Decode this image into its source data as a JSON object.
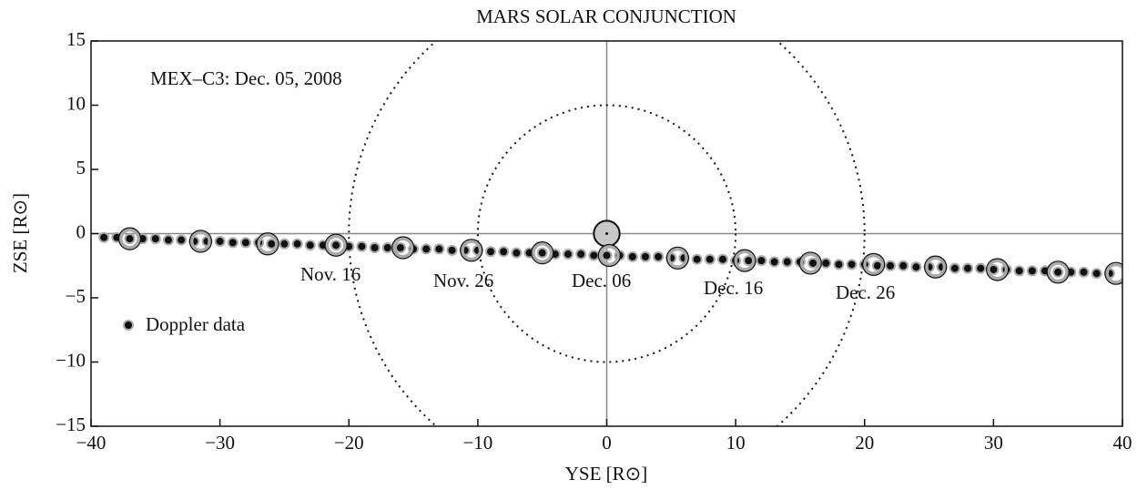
{
  "chart_data": {
    "type": "scatter",
    "title": "MARS SOLAR CONJUNCTION",
    "x_label": "YSE [R⊙]",
    "y_label": "ZSE [R⊙]",
    "annotations": [
      "MEX–C3: Dec. 05, 2008",
      "Nov. 16",
      "Nov. 26",
      "Dec. 06",
      "Dec. 16",
      "Dec. 26"
    ],
    "xlim": [
      -40,
      40
    ],
    "ylim": [
      -15,
      15
    ],
    "xticks": [
      {
        "value": -40,
        "label": "−40"
      },
      {
        "value": -30,
        "label": "−30"
      },
      {
        "value": -20,
        "label": "−20"
      },
      {
        "value": -10,
        "label": "−10"
      },
      0,
      10,
      20,
      30,
      40
    ],
    "yticks": [
      {
        "value": -15,
        "label": "−15"
      },
      {
        "value": -10,
        "label": "−10"
      },
      {
        "value": -5,
        "label": "−5"
      },
      0,
      5,
      10,
      15
    ],
    "grid": false,
    "legend": "lower left",
    "sun": {
      "x": 0,
      "y": 0,
      "r": 1
    },
    "circle_radii": [
      10,
      20
    ],
    "series": [
      {
        "name": "Doppler data",
        "color": "#111111",
        "x": [
          -39,
          -38,
          -37,
          -36,
          -35,
          -34,
          -33,
          -32,
          -31,
          -30,
          -29,
          -28,
          -27,
          -26,
          -25,
          -24,
          -23,
          -22,
          -21,
          -20,
          -19,
          -18,
          -17,
          -16,
          -15,
          -14,
          -13,
          -12,
          -11,
          -10,
          -9,
          -8,
          -7,
          -6,
          -5,
          -4,
          -3,
          -2,
          -1,
          0,
          1,
          2,
          3,
          4,
          5,
          6,
          7,
          8,
          9,
          10,
          11,
          12,
          13,
          14,
          15,
          16,
          17,
          18,
          19,
          20,
          21,
          22,
          23,
          24,
          25,
          26,
          27,
          28,
          29,
          30,
          31,
          32,
          33,
          34,
          35,
          36,
          37,
          38,
          39
        ],
        "values": [
          -0.3,
          -0.3,
          -0.4,
          -0.4,
          -0.4,
          -0.5,
          -0.5,
          -0.6,
          -0.6,
          -0.6,
          -0.7,
          -0.7,
          -0.7,
          -0.8,
          -0.8,
          -0.8,
          -0.9,
          -0.9,
          -0.9,
          -1.0,
          -1.0,
          -1.1,
          -1.1,
          -1.1,
          -1.2,
          -1.2,
          -1.2,
          -1.3,
          -1.3,
          -1.3,
          -1.4,
          -1.4,
          -1.5,
          -1.5,
          -1.5,
          -1.6,
          -1.6,
          -1.6,
          -1.7,
          -1.7,
          -1.7,
          -1.8,
          -1.8,
          -1.8,
          -1.9,
          -1.9,
          -2.0,
          -2.0,
          -2.0,
          -2.1,
          -2.1,
          -2.1,
          -2.2,
          -2.2,
          -2.2,
          -2.3,
          -2.3,
          -2.4,
          -2.4,
          -2.4,
          -2.5,
          -2.5,
          -2.5,
          -2.6,
          -2.6,
          -2.6,
          -2.7,
          -2.7,
          -2.7,
          -2.8,
          -2.8,
          -2.9,
          -2.9,
          -2.9,
          -3.0,
          -3.0,
          -3.0,
          -3.1,
          -3.1
        ]
      },
      {
        "color": "#aaaaaa",
        "x": [
          -37,
          -31.5,
          -26.3,
          -21,
          -15.8,
          -10.5,
          -5,
          0.2,
          5.5,
          10.7,
          15.8,
          20.7,
          25.5,
          30.3,
          35,
          39.5
        ],
        "values": [
          -0.4,
          -0.6,
          -0.8,
          -0.9,
          -1.1,
          -1.3,
          -1.5,
          -1.7,
          -1.9,
          -2.1,
          -2.3,
          -2.4,
          -2.6,
          -2.8,
          -3.0,
          -3.1
        ]
      }
    ]
  }
}
